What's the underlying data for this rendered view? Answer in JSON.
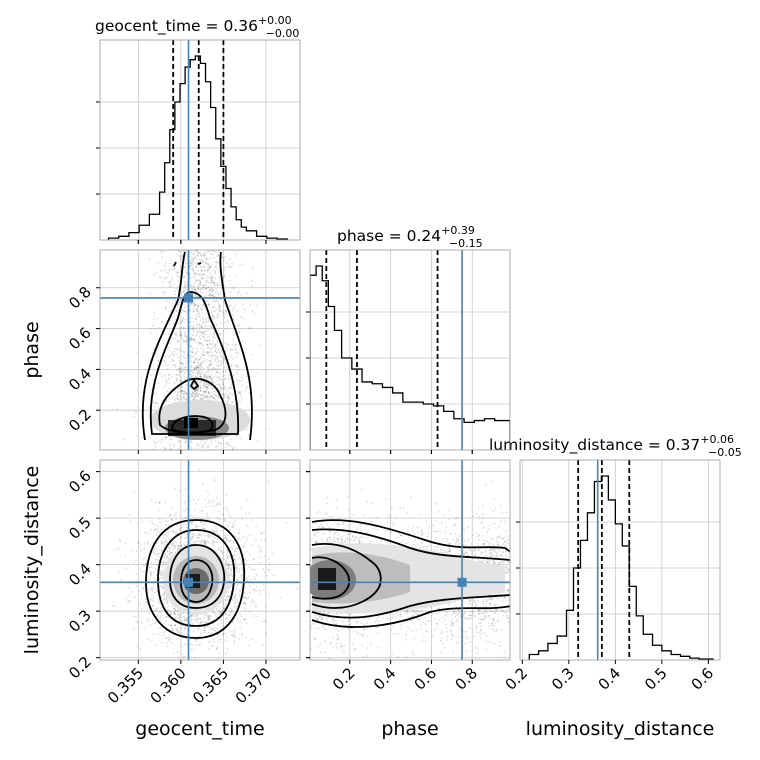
{
  "chart_data": {
    "type": "corner",
    "parameters": [
      "geocent_time",
      "phase",
      "luminosity_distance"
    ],
    "colors": {
      "truth": "#4682b4",
      "hist": "#000000",
      "grid": "#c8c8c8"
    },
    "titles": {
      "geocent_time": {
        "name": "geocent_time",
        "value": "0.36",
        "plus": "+0.00",
        "minus": "−0.00"
      },
      "phase": {
        "name": "phase",
        "value": "0.24",
        "plus": "+0.39",
        "minus": "−0.15"
      },
      "luminosity_distance": {
        "name": "luminosity_distance",
        "value": "0.37",
        "plus": "+0.06",
        "minus": "−0.05"
      }
    },
    "axes": {
      "geocent_time": {
        "label": "geocent_time",
        "range": [
          0.3505,
          0.374
        ],
        "ticks": [
          0.355,
          0.36,
          0.365,
          0.37
        ],
        "tick_labels": [
          "0.355",
          "0.360",
          "0.365",
          "0.370"
        ]
      },
      "phase": {
        "label": "phase",
        "range": [
          0.005,
          0.985
        ],
        "ticks": [
          0.2,
          0.4,
          0.6,
          0.8
        ],
        "tick_labels": [
          "0.2",
          "0.4",
          "0.6",
          "0.8"
        ]
      },
      "luminosity_distance": {
        "label": "luminosity_distance",
        "range": [
          0.195,
          0.625
        ],
        "ticks": [
          0.2,
          0.3,
          0.4,
          0.5,
          0.6
        ],
        "tick_labels": [
          "0.2",
          "0.3",
          "0.4",
          "0.5",
          "0.6"
        ]
      }
    },
    "truths": {
      "geocent_time": 0.3609,
      "phase": 0.75,
      "luminosity_distance": 0.362
    },
    "quantiles": {
      "geocent_time": [
        0.3591,
        0.3621,
        0.365
      ],
      "phase": [
        0.085,
        0.235,
        0.63
      ],
      "luminosity_distance": [
        0.32,
        0.371,
        0.43
      ]
    },
    "histograms": {
      "geocent_time": {
        "edges": [
          0.3515,
          0.3527,
          0.3539,
          0.3551,
          0.3563,
          0.3575,
          0.3581,
          0.3587,
          0.3593,
          0.3599,
          0.3605,
          0.3611,
          0.3617,
          0.3623,
          0.3629,
          0.3635,
          0.3641,
          0.3647,
          0.3653,
          0.3659,
          0.3665,
          0.3671,
          0.3677,
          0.3689,
          0.3701,
          0.3713,
          0.3725
        ],
        "counts": [
          0.01,
          0.02,
          0.04,
          0.08,
          0.14,
          0.26,
          0.42,
          0.6,
          0.75,
          0.85,
          0.94,
          0.98,
          1.0,
          0.96,
          0.86,
          0.72,
          0.55,
          0.4,
          0.28,
          0.18,
          0.11,
          0.07,
          0.05,
          0.02,
          0.01,
          0.005
        ]
      },
      "phase": {
        "edges": [
          0.005,
          0.035,
          0.065,
          0.095,
          0.125,
          0.16,
          0.21,
          0.26,
          0.31,
          0.36,
          0.41,
          0.46,
          0.51,
          0.56,
          0.61,
          0.66,
          0.71,
          0.76,
          0.81,
          0.86,
          0.91,
          0.985
        ],
        "counts": [
          0.95,
          1.0,
          0.92,
          0.78,
          0.65,
          0.5,
          0.44,
          0.37,
          0.36,
          0.34,
          0.31,
          0.26,
          0.26,
          0.25,
          0.24,
          0.21,
          0.17,
          0.15,
          0.16,
          0.17,
          0.16
        ]
      },
      "luminosity_distance": {
        "edges": [
          0.215,
          0.235,
          0.255,
          0.275,
          0.295,
          0.31,
          0.325,
          0.34,
          0.355,
          0.37,
          0.385,
          0.4,
          0.415,
          0.43,
          0.445,
          0.46,
          0.48,
          0.5,
          0.52,
          0.54,
          0.56,
          0.58,
          0.61
        ],
        "counts": [
          0.03,
          0.05,
          0.09,
          0.13,
          0.27,
          0.5,
          0.65,
          0.8,
          0.97,
          1.0,
          0.87,
          0.74,
          0.62,
          0.4,
          0.24,
          0.14,
          0.08,
          0.05,
          0.03,
          0.02,
          0.01,
          0.005
        ]
      }
    },
    "contour_levels": [
      "39%",
      "86%",
      "99%"
    ]
  }
}
